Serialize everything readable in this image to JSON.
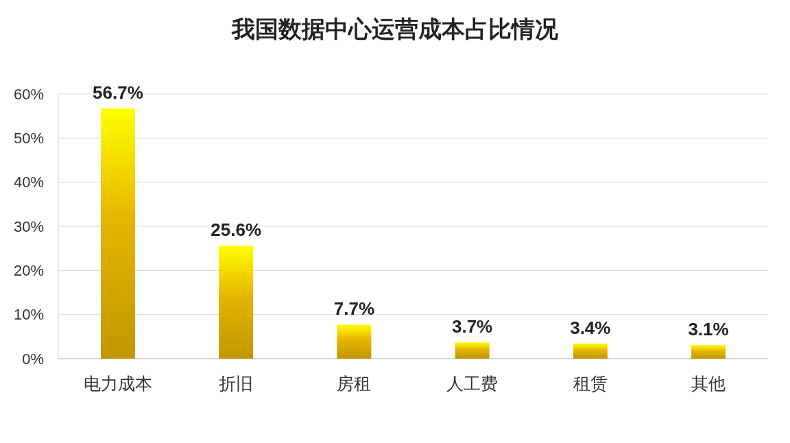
{
  "chart_data": {
    "type": "bar",
    "title": "我国数据中心运营成本占比情况",
    "categories": [
      "电力成本",
      "折旧",
      "房租",
      "人工费",
      "租赁",
      "其他"
    ],
    "values": [
      56.7,
      25.6,
      7.7,
      3.7,
      3.4,
      3.1
    ],
    "value_labels": [
      "56.7%",
      "25.6%",
      "7.7%",
      "3.7%",
      "3.4%",
      "3.1%"
    ],
    "color": "#e6b400",
    "ylim": [
      0,
      60
    ],
    "yticks": [
      {
        "value": 0,
        "label": "0%"
      },
      {
        "value": 10,
        "label": "10%"
      },
      {
        "value": 20,
        "label": "20%"
      },
      {
        "value": 30,
        "label": "30%"
      },
      {
        "value": 40,
        "label": "40%"
      },
      {
        "value": 50,
        "label": "50%"
      },
      {
        "value": 60,
        "label": "60%"
      }
    ],
    "grid": "y"
  }
}
